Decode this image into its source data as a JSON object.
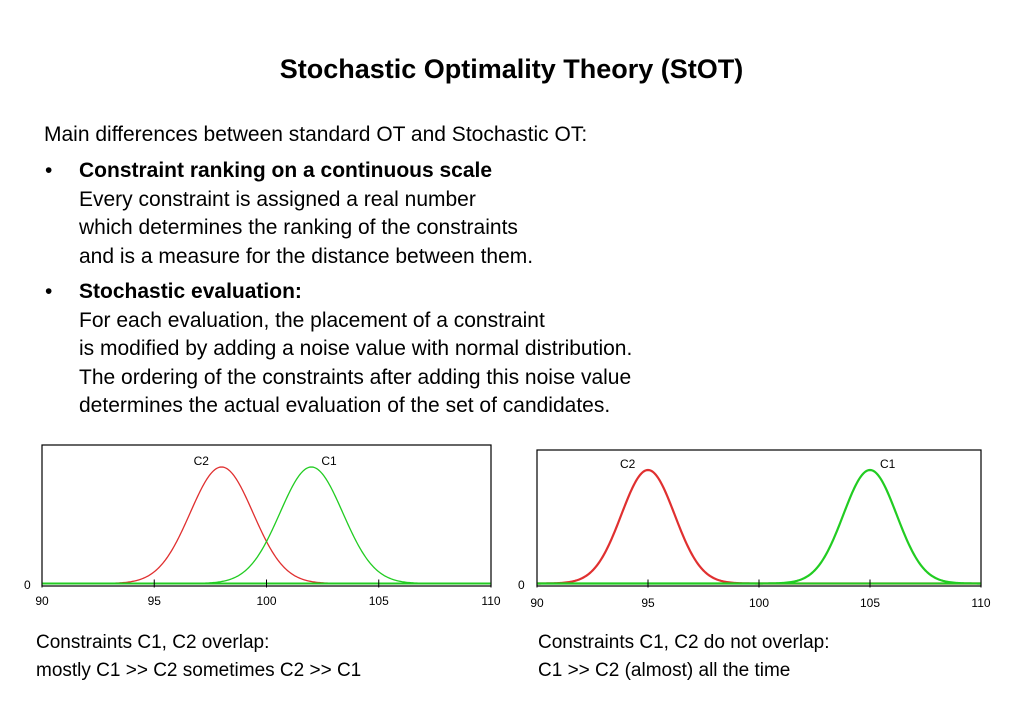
{
  "title": "Stochastic Optimality Theory (StOT)",
  "intro": "Main differences between standard OT and Stochastic OT:",
  "bullet_symbol": "•",
  "bullets": [
    {
      "heading": "Constraint ranking on a continuous scale",
      "lines": [
        "Every constraint is assigned a real number",
        "which determines the ranking of the constraints",
        "and is a measure for the distance between them."
      ]
    },
    {
      "heading": "Stochastic evaluation:",
      "lines": [
        "For each evaluation, the placement of a constraint",
        "is modified by adding a noise value with normal distribution.",
        "The ordering of the constraints after adding this noise value",
        "determines the actual evaluation of the set of candidates."
      ]
    }
  ],
  "chart_data": [
    {
      "type": "line",
      "xlim": [
        90,
        110
      ],
      "ylim": [
        0,
        1
      ],
      "x_ticks": [
        90,
        95,
        100,
        105,
        110
      ],
      "y_tick_label": "0",
      "series": [
        {
          "name": "C2",
          "distribution": "normal",
          "mean": 98,
          "sd": 1.4,
          "color": "#e03030"
        },
        {
          "name": "C1",
          "distribution": "normal",
          "mean": 102,
          "sd": 1.4,
          "color": "#22cc22"
        }
      ],
      "caption": [
        "Constraints C1, C2 overlap:",
        "mostly C1 >> C2 sometimes C2 >> C1"
      ]
    },
    {
      "type": "line",
      "xlim": [
        90,
        110
      ],
      "ylim": [
        0,
        1
      ],
      "x_ticks": [
        90,
        95,
        100,
        105,
        110
      ],
      "y_tick_label": "0",
      "series": [
        {
          "name": "C2",
          "distribution": "normal",
          "mean": 95,
          "sd": 1.2,
          "color": "#e03030"
        },
        {
          "name": "C1",
          "distribution": "normal",
          "mean": 105,
          "sd": 1.2,
          "color": "#22cc22"
        }
      ],
      "caption": [
        "Constraints C1, C2 do not overlap:",
        "C1 >> C2 (almost) all the time"
      ]
    }
  ]
}
